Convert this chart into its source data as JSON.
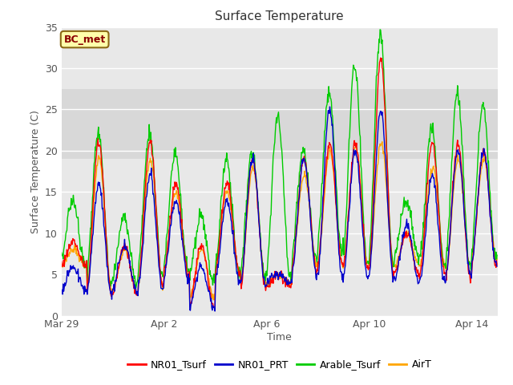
{
  "title": "Surface Temperature",
  "ylabel": "Surface Temperature (C)",
  "xlabel": "Time",
  "annotation": "BC_met",
  "ylim": [
    0,
    35
  ],
  "background_color": "#ffffff",
  "plot_bg_color": "#e8e8e8",
  "band_light_color": "#d4d4d4",
  "series_colors": {
    "NR01_Tsurf": "#ff0000",
    "NR01_PRT": "#0000cc",
    "Arable_Tsurf": "#00cc00",
    "AirT": "#ffa500"
  },
  "xtick_labels": [
    "Mar 29",
    "Apr 2",
    "Apr 6",
    "Apr 10",
    "Apr 14"
  ],
  "xtick_positions": [
    0,
    4,
    8,
    12,
    16
  ],
  "ytick_values": [
    0,
    5,
    10,
    15,
    20,
    25,
    30,
    35
  ],
  "n_days": 17,
  "legend_labels": [
    "NR01_Tsurf",
    "NR01_PRT",
    "Arable_Tsurf",
    "AirT"
  ]
}
